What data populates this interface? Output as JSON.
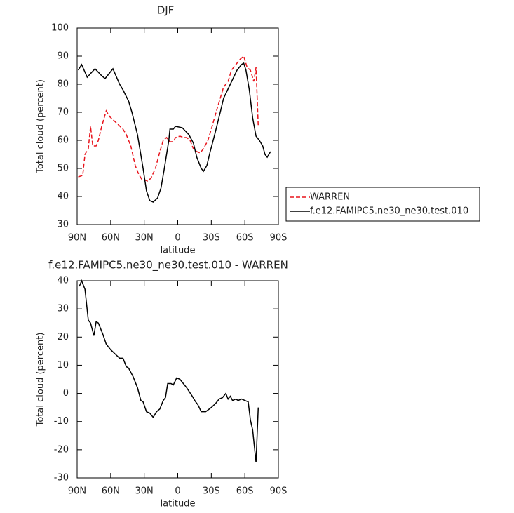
{
  "chart_data": [
    {
      "type": "line",
      "title": "DJF",
      "xlabel": "latitude",
      "ylabel": "Total cloud (percent)",
      "xlim": [
        90,
        -90
      ],
      "ylim": [
        30,
        100
      ],
      "xticks": [
        {
          "value": 90,
          "label": "90N"
        },
        {
          "value": 60,
          "label": "60N"
        },
        {
          "value": 30,
          "label": "30N"
        },
        0,
        {
          "value": -30,
          "label": "30S"
        },
        {
          "value": -60,
          "label": "60S"
        },
        {
          "value": -90,
          "label": "90S"
        }
      ],
      "yticks": [
        30,
        40,
        50,
        60,
        70,
        80,
        90,
        100
      ],
      "legend": "right",
      "series": [
        {
          "name": "WARREN",
          "color": "#e8141c",
          "dash": true,
          "x": [
            89,
            85,
            83,
            80,
            78,
            76,
            73,
            71,
            68,
            64,
            61,
            57,
            53,
            49,
            46,
            42,
            38,
            35,
            32,
            30,
            27,
            24,
            20,
            16,
            13,
            10,
            7,
            4,
            2,
            -2,
            -5,
            -8,
            -11,
            -14,
            -17,
            -20,
            -23,
            -27,
            -30,
            -35,
            -38,
            -41,
            -45,
            -48,
            -52,
            -56,
            -59,
            -62,
            -65,
            -68,
            -70,
            -72
          ],
          "values": [
            47,
            47.5,
            55,
            57,
            65,
            58,
            58,
            60,
            65,
            70.5,
            68.5,
            67,
            65.5,
            64,
            62,
            58,
            51,
            48,
            46,
            46,
            45.5,
            46.5,
            50,
            56,
            60,
            61,
            59.5,
            59.5,
            61,
            61.5,
            61,
            61,
            60,
            57,
            56,
            55.5,
            57,
            60,
            64,
            71,
            75,
            79,
            81,
            85,
            87,
            89,
            90,
            86,
            85,
            81,
            86,
            65
          ]
        },
        {
          "name": "f.e12.FAMIPC5.ne30_ne30.test.010",
          "color": "#000000",
          "dash": false,
          "x": [
            89,
            86,
            81,
            74,
            68,
            65,
            58,
            52,
            49,
            44,
            41,
            36,
            31,
            28,
            25,
            22,
            18,
            15,
            12,
            8,
            7,
            4,
            2,
            -4,
            -10,
            -14,
            -17,
            -21,
            -23,
            -26,
            -29,
            -33,
            -38,
            -41,
            -47,
            -53,
            -57,
            -59,
            -61,
            -64,
            -67,
            -70,
            -73,
            -76,
            -78,
            -80,
            -83
          ],
          "values": [
            85,
            87,
            82.5,
            85.5,
            83,
            82,
            85.5,
            80,
            78,
            74,
            70,
            62,
            50,
            42,
            38.5,
            38,
            39.5,
            43,
            50,
            60,
            64,
            64,
            65,
            64.5,
            62,
            59,
            54,
            50,
            49,
            51,
            56,
            62,
            70,
            75,
            80,
            85,
            87,
            87.5,
            85,
            78,
            68,
            61.5,
            60,
            58,
            55,
            54,
            56
          ]
        }
      ]
    },
    {
      "type": "line",
      "title": "f.e12.FAMIPC5.ne30_ne30.test.010 - WARREN",
      "xlabel": "latitude",
      "ylabel": "Total cloud (percent)",
      "xlim": [
        90,
        -90
      ],
      "ylim": [
        -30,
        40
      ],
      "xticks": [
        {
          "value": 90,
          "label": "90N"
        },
        {
          "value": 60,
          "label": "60N"
        },
        {
          "value": 30,
          "label": "30N"
        },
        0,
        {
          "value": -30,
          "label": "30S"
        },
        {
          "value": -60,
          "label": "60S"
        },
        {
          "value": -90,
          "label": "90S"
        }
      ],
      "yticks": [
        -30,
        -20,
        -10,
        0,
        10,
        20,
        30,
        40
      ],
      "series": [
        {
          "color": "#000000",
          "dash": false,
          "x": [
            88,
            86,
            83,
            80,
            78,
            75,
            73,
            71,
            67,
            64,
            60,
            56,
            52,
            49,
            46,
            44,
            40,
            36,
            33,
            31,
            28,
            25,
            22,
            19,
            16,
            13,
            11,
            9,
            6,
            4,
            1,
            -2,
            -8,
            -13,
            -16,
            -18,
            -21,
            -25,
            -30,
            -34,
            -37,
            -40,
            -43,
            -45,
            -47,
            -49,
            -52,
            -54,
            -57,
            -60,
            -63,
            -65,
            -67,
            -70,
            -72
          ],
          "values": [
            38,
            40,
            37,
            26,
            25,
            20.5,
            25.5,
            25,
            21,
            17.5,
            15.5,
            14,
            12.5,
            12.5,
            9.5,
            9,
            6,
            2,
            -2.5,
            -3,
            -6.5,
            -7,
            -8.5,
            -6.5,
            -5.5,
            -2.5,
            -1.5,
            3.5,
            3.5,
            3,
            5.5,
            5,
            2,
            -1,
            -3,
            -4,
            -6.5,
            -6.5,
            -5,
            -3.5,
            -2,
            -1.5,
            0,
            -2,
            -1,
            -2.5,
            -2,
            -2.5,
            -2,
            -2.5,
            -3,
            -9.5,
            -13,
            -24.5,
            -5
          ]
        }
      ]
    }
  ]
}
